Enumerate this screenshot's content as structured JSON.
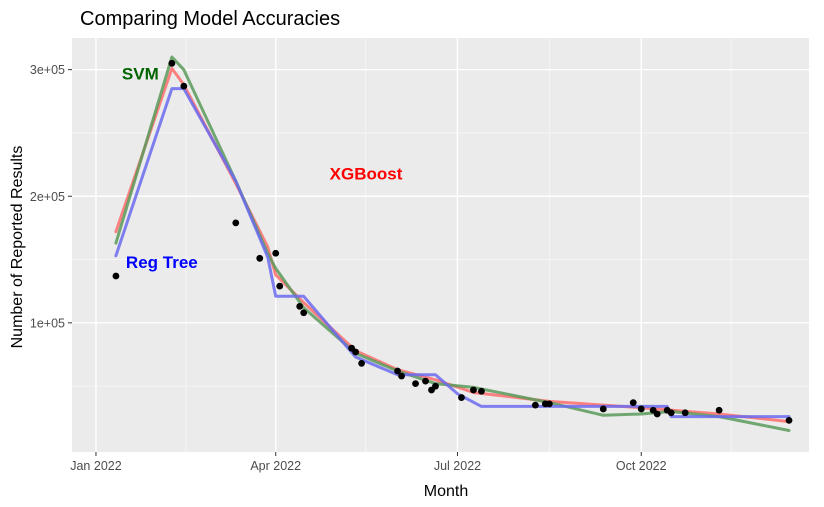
{
  "chart_data": {
    "type": "line",
    "title": "Comparing Model Accuracies",
    "xlabel": "Month",
    "ylabel": "Number of Reported Results",
    "x_range": [
      "2021-12-20",
      "2022-12-24"
    ],
    "ylim": [
      -2000,
      325000
    ],
    "x_ticks": [
      {
        "date": "2022-01-01",
        "label": "Jan 2022"
      },
      {
        "date": "2022-04-01",
        "label": "Apr 2022"
      },
      {
        "date": "2022-07-01",
        "label": "Jul 2022"
      },
      {
        "date": "2022-10-01",
        "label": "Oct 2022"
      }
    ],
    "x_minor_breaks": [
      "2022-02-15",
      "2022-05-16",
      "2022-08-16",
      "2022-11-15"
    ],
    "y_ticks": [
      {
        "value": 100000,
        "label": "1e+05"
      },
      {
        "value": 200000,
        "label": "2e+05"
      },
      {
        "value": 300000,
        "label": "3e+05"
      }
    ],
    "y_minor_breaks": [
      50000,
      150000,
      250000
    ],
    "grid": true,
    "points": {
      "color": "#000000",
      "data": [
        {
          "x": "2022-01-11",
          "y": 137000
        },
        {
          "x": "2022-02-08",
          "y": 305000
        },
        {
          "x": "2022-02-14",
          "y": 287000
        },
        {
          "x": "2022-03-12",
          "y": 179000
        },
        {
          "x": "2022-03-24",
          "y": 151000
        },
        {
          "x": "2022-04-01",
          "y": 155000
        },
        {
          "x": "2022-04-03",
          "y": 129000
        },
        {
          "x": "2022-04-13",
          "y": 113000
        },
        {
          "x": "2022-04-15",
          "y": 108000
        },
        {
          "x": "2022-05-09",
          "y": 80000
        },
        {
          "x": "2022-05-11",
          "y": 77000
        },
        {
          "x": "2022-05-14",
          "y": 68000
        },
        {
          "x": "2022-06-01",
          "y": 62000
        },
        {
          "x": "2022-06-03",
          "y": 58000
        },
        {
          "x": "2022-06-10",
          "y": 52000
        },
        {
          "x": "2022-06-15",
          "y": 54000
        },
        {
          "x": "2022-06-18",
          "y": 47000
        },
        {
          "x": "2022-06-20",
          "y": 50000
        },
        {
          "x": "2022-07-03",
          "y": 41000
        },
        {
          "x": "2022-07-09",
          "y": 47000
        },
        {
          "x": "2022-07-13",
          "y": 46000
        },
        {
          "x": "2022-08-09",
          "y": 35000
        },
        {
          "x": "2022-08-14",
          "y": 36000
        },
        {
          "x": "2022-08-16",
          "y": 36000
        },
        {
          "x": "2022-09-12",
          "y": 32000
        },
        {
          "x": "2022-09-27",
          "y": 37000
        },
        {
          "x": "2022-10-01",
          "y": 32000
        },
        {
          "x": "2022-10-07",
          "y": 31000
        },
        {
          "x": "2022-10-09",
          "y": 28000
        },
        {
          "x": "2022-10-14",
          "y": 31000
        },
        {
          "x": "2022-10-16",
          "y": 29000
        },
        {
          "x": "2022-10-23",
          "y": 29000
        },
        {
          "x": "2022-11-09",
          "y": 31000
        },
        {
          "x": "2022-12-14",
          "y": 23000
        }
      ]
    },
    "series": [
      {
        "name": "XGBoost",
        "color": "#ff6d6d",
        "label_color": "#ff0000",
        "label_at": {
          "x": "2022-04-28",
          "y": 218000
        },
        "points": [
          [
            "2022-01-11",
            172000
          ],
          [
            "2022-02-08",
            301000
          ],
          [
            "2022-02-14",
            288000
          ],
          [
            "2022-03-12",
            210000
          ],
          [
            "2022-03-28",
            160000
          ],
          [
            "2022-04-01",
            138000
          ],
          [
            "2022-04-15",
            116000
          ],
          [
            "2022-05-11",
            78000
          ],
          [
            "2022-06-01",
            63000
          ],
          [
            "2022-06-20",
            55000
          ],
          [
            "2022-07-09",
            45000
          ],
          [
            "2022-08-16",
            38000
          ],
          [
            "2022-10-01",
            33000
          ],
          [
            "2022-11-09",
            28000
          ],
          [
            "2022-12-14",
            22000
          ]
        ]
      },
      {
        "name": "SVM",
        "color": "#5a9a5a",
        "label_color": "#006400",
        "label_at": {
          "x": "2022-01-14",
          "y": 297000
        },
        "points": [
          [
            "2022-01-11",
            163000
          ],
          [
            "2022-02-08",
            310000
          ],
          [
            "2022-02-14",
            300000
          ],
          [
            "2022-03-12",
            212000
          ],
          [
            "2022-03-28",
            155000
          ],
          [
            "2022-04-01",
            143000
          ],
          [
            "2022-04-15",
            112000
          ],
          [
            "2022-05-11",
            76000
          ],
          [
            "2022-06-01",
            62000
          ],
          [
            "2022-06-20",
            52000
          ],
          [
            "2022-07-09",
            49000
          ],
          [
            "2022-08-16",
            37000
          ],
          [
            "2022-09-12",
            27000
          ],
          [
            "2022-10-01",
            28000
          ],
          [
            "2022-10-16",
            30000
          ],
          [
            "2022-11-09",
            26000
          ],
          [
            "2022-12-14",
            15000
          ]
        ]
      },
      {
        "name": "Reg Tree",
        "color": "#6b6bef",
        "label_color": "#0000ff",
        "label_at": {
          "x": "2022-01-16",
          "y": 148000
        },
        "points": [
          [
            "2022-01-11",
            153000
          ],
          [
            "2022-02-08",
            285000
          ],
          [
            "2022-02-14",
            285000
          ],
          [
            "2022-03-12",
            212000
          ],
          [
            "2022-03-28",
            152000
          ],
          [
            "2022-04-01",
            121000
          ],
          [
            "2022-04-13",
            121000
          ],
          [
            "2022-04-15",
            121000
          ],
          [
            "2022-05-11",
            73000
          ],
          [
            "2022-06-01",
            59000
          ],
          [
            "2022-06-20",
            59000
          ],
          [
            "2022-07-01",
            44000
          ],
          [
            "2022-07-13",
            34000
          ],
          [
            "2022-09-12",
            34000
          ],
          [
            "2022-10-14",
            34000
          ],
          [
            "2022-10-16",
            26000
          ],
          [
            "2022-12-14",
            26000
          ]
        ]
      }
    ]
  }
}
